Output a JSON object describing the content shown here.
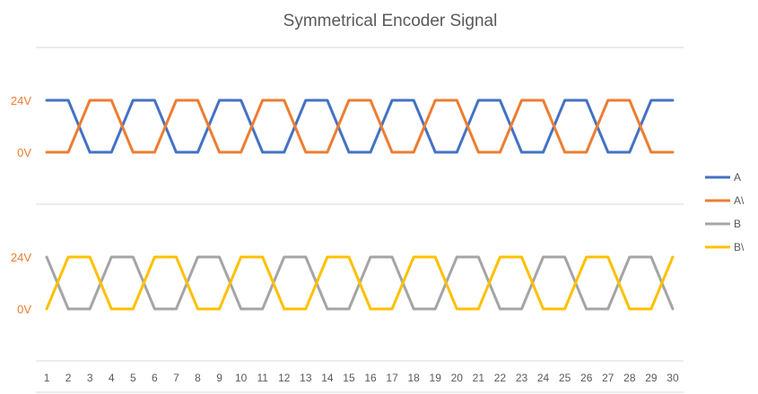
{
  "chart_data": {
    "type": "line",
    "title": "Symmetrical Encoder Signal",
    "x": [
      1,
      2,
      3,
      4,
      5,
      6,
      7,
      8,
      9,
      10,
      11,
      12,
      13,
      14,
      15,
      16,
      17,
      18,
      19,
      20,
      21,
      22,
      23,
      24,
      25,
      26,
      27,
      28,
      29,
      30
    ],
    "xlim": [
      0.5,
      30.5
    ],
    "y_tick_labels": [
      "24V",
      "0V"
    ],
    "legend_position": "right",
    "panels": [
      {
        "name": "top",
        "series": [
          {
            "name": "A",
            "color": "#4472C4",
            "values": [
              24,
              24,
              0,
              0,
              24,
              24,
              0,
              0,
              24,
              24,
              0,
              0,
              24,
              24,
              0,
              0,
              24,
              24,
              0,
              0,
              24,
              24,
              0,
              0,
              24,
              24,
              0,
              0,
              24,
              24
            ]
          },
          {
            "name": "A\\",
            "color": "#ED7D31",
            "values": [
              0,
              0,
              24,
              24,
              0,
              0,
              24,
              24,
              0,
              0,
              24,
              24,
              0,
              0,
              24,
              24,
              0,
              0,
              24,
              24,
              0,
              0,
              24,
              24,
              0,
              0,
              24,
              24,
              0,
              0
            ]
          }
        ]
      },
      {
        "name": "bottom",
        "series": [
          {
            "name": "B",
            "color": "#A5A5A5",
            "values": [
              24,
              0,
              0,
              24,
              24,
              0,
              0,
              24,
              24,
              0,
              0,
              24,
              24,
              0,
              0,
              24,
              24,
              0,
              0,
              24,
              24,
              0,
              0,
              24,
              24,
              0,
              0,
              24,
              24,
              0
            ]
          },
          {
            "name": "B\\",
            "color": "#FFC000",
            "values": [
              0,
              24,
              24,
              0,
              0,
              24,
              24,
              0,
              0,
              24,
              24,
              0,
              0,
              24,
              24,
              0,
              0,
              24,
              24,
              0,
              0,
              24,
              24,
              0,
              0,
              24,
              24,
              0,
              0,
              24
            ]
          }
        ]
      }
    ]
  }
}
